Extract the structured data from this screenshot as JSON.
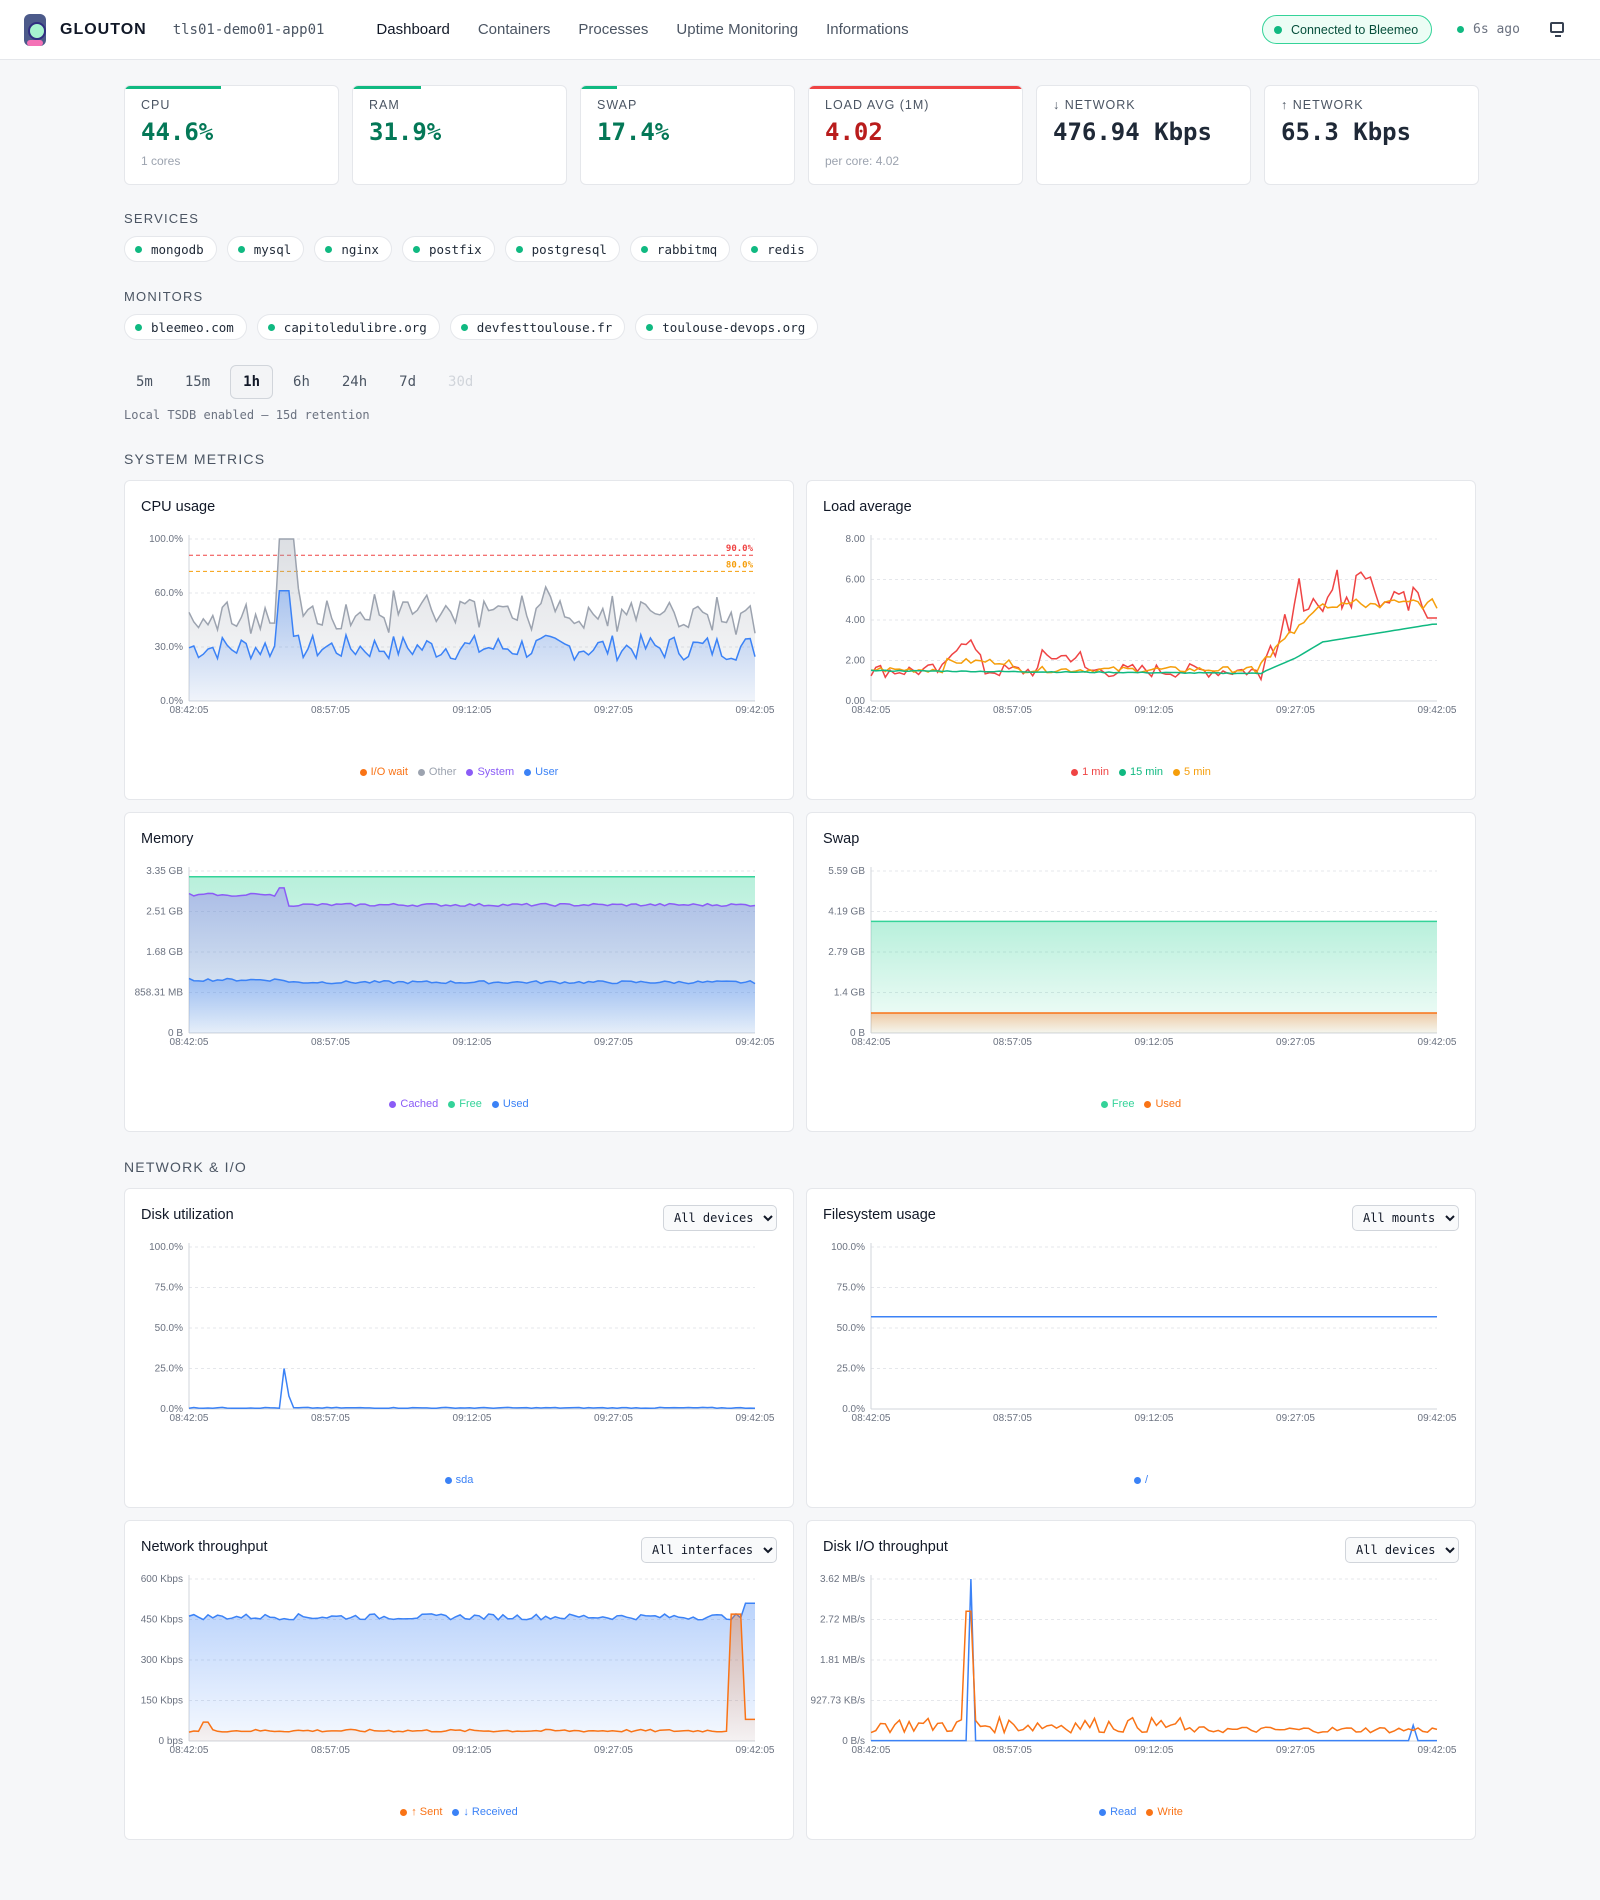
{
  "app": {
    "brand": "GLOUTON",
    "host": "tls01-demo01-app01"
  },
  "nav": {
    "items": [
      "Dashboard",
      "Containers",
      "Processes",
      "Uptime Monitoring",
      "Informations"
    ],
    "active": "Dashboard"
  },
  "status": {
    "connection": "Connected to Bleemeo",
    "last_update": "6s ago"
  },
  "cards": [
    {
      "label": "CPU",
      "value": "44.6%",
      "sub": "1 cores",
      "color": "#047857",
      "bar_color": "#10b981",
      "bar_fraction": 0.45
    },
    {
      "label": "RAM",
      "value": "31.9%",
      "sub": "",
      "color": "#047857",
      "bar_color": "#10b981",
      "bar_fraction": 0.32
    },
    {
      "label": "SWAP",
      "value": "17.4%",
      "sub": "",
      "color": "#047857",
      "bar_color": "#10b981",
      "bar_fraction": 0.17
    },
    {
      "label": "LOAD AVG (1M)",
      "value": "4.02",
      "sub": "per core: 4.02",
      "color": "#b91c1c",
      "bar_color": "#ef4444",
      "bar_fraction": 1.0
    },
    {
      "label": "↓ NETWORK",
      "value": "476.94 Kbps",
      "sub": "",
      "color": "#111827"
    },
    {
      "label": "↑ NETWORK",
      "value": "65.3 Kbps",
      "sub": "",
      "color": "#111827"
    }
  ],
  "services": {
    "label": "SERVICES",
    "items": [
      "mongodb",
      "mysql",
      "nginx",
      "postfix",
      "postgresql",
      "rabbitmq",
      "redis"
    ]
  },
  "monitors": {
    "label": "MONITORS",
    "items": [
      "bleemeo.com",
      "capitoledulibre.org",
      "devfesttoulouse.fr",
      "toulouse-devops.org"
    ]
  },
  "time_ranges": {
    "items": [
      "5m",
      "15m",
      "1h",
      "6h",
      "24h",
      "7d",
      "30d"
    ],
    "active": "1h",
    "disabled": [
      "30d"
    ]
  },
  "tsdb_note": "Local TSDB enabled — 15d retention",
  "sections": {
    "system": "SYSTEM METRICS",
    "network": "NETWORK & I/O"
  },
  "x_ticks": [
    "08:42:05",
    "08:57:05",
    "09:12:05",
    "09:27:05",
    "09:42:05"
  ],
  "chart_data": [
    {
      "id": "cpu",
      "type": "area",
      "title": "CPU usage",
      "ylabels": [
        "100.0%",
        "60.0%",
        "30.0%",
        "0.0%"
      ],
      "ylim": [
        0,
        100
      ],
      "thresholds": [
        {
          "label": "90.0%",
          "value": 90,
          "color": "#ef4444"
        },
        {
          "label": "80.0%",
          "value": 80,
          "color": "#f59e0b"
        }
      ],
      "series": [
        {
          "name": "I/O wait",
          "color": "#f97316"
        },
        {
          "name": "Other",
          "color": "#9ca3af",
          "approx": "~50% with spike to 100% near 08:49"
        },
        {
          "name": "System",
          "color": "#8b5cf6"
        },
        {
          "name": "User",
          "color": "#3b82f6",
          "approx": "~35% with spike to 68% near 08:49"
        }
      ]
    },
    {
      "id": "load",
      "type": "line",
      "title": "Load average",
      "ylabels": [
        "8.00",
        "6.00",
        "4.00",
        "2.00",
        "0.00"
      ],
      "ylim": [
        0,
        8
      ],
      "series": [
        {
          "name": "1 min",
          "color": "#ef4444"
        },
        {
          "name": "15 min",
          "color": "#10b981"
        },
        {
          "name": "5 min",
          "color": "#f59e0b"
        }
      ]
    },
    {
      "id": "memory",
      "type": "area",
      "title": "Memory",
      "ylabels": [
        "3.35 GB",
        "2.51 GB",
        "1.68 GB",
        "858.31 MB",
        "0 B"
      ],
      "ylim": [
        0,
        3.35
      ],
      "series": [
        {
          "name": "Cached",
          "color": "#8b5cf6"
        },
        {
          "name": "Free",
          "color": "#34d399"
        },
        {
          "name": "Used",
          "color": "#3b82f6"
        }
      ]
    },
    {
      "id": "swap",
      "type": "area",
      "title": "Swap",
      "ylabels": [
        "5.59 GB",
        "4.19 GB",
        "2.79 GB",
        "1.4 GB",
        "0 B"
      ],
      "ylim": [
        0,
        5.59
      ],
      "series": [
        {
          "name": "Free",
          "color": "#34d399",
          "approx": "3.85 GB"
        },
        {
          "name": "Used",
          "color": "#f97316",
          "approx": "0.69 GB"
        }
      ]
    },
    {
      "id": "disk",
      "type": "line",
      "title": "Disk utilization",
      "select": "All devices",
      "ylabels": [
        "100.0%",
        "75.0%",
        "50.0%",
        "25.0%",
        "0.0%"
      ],
      "ylim": [
        0,
        100
      ],
      "series": [
        {
          "name": "sda",
          "color": "#3b82f6"
        }
      ]
    },
    {
      "id": "fs",
      "type": "line",
      "title": "Filesystem usage",
      "select": "All mounts",
      "ylabels": [
        "100.0%",
        "75.0%",
        "50.0%",
        "25.0%",
        "0.0%"
      ],
      "ylim": [
        0,
        100
      ],
      "series": [
        {
          "name": "/",
          "color": "#3b82f6",
          "approx": "57%"
        }
      ]
    },
    {
      "id": "net",
      "type": "area",
      "title": "Network throughput",
      "select": "All interfaces",
      "ylabels": [
        "600 Kbps",
        "450 Kbps",
        "300 Kbps",
        "150 Kbps",
        "0 bps"
      ],
      "ylim": [
        0,
        600
      ],
      "series": [
        {
          "name": "↑ Sent",
          "color": "#f97316",
          "approx": "~40 Kbps, spike 470 at end"
        },
        {
          "name": "↓ Received",
          "color": "#3b82f6",
          "approx": "~470 Kbps"
        }
      ]
    },
    {
      "id": "dio",
      "type": "line",
      "title": "Disk I/O throughput",
      "select": "All devices",
      "ylabels": [
        "3.62 MB/s",
        "2.72 MB/s",
        "1.81 MB/s",
        "927.73 KB/s",
        "0 B/s"
      ],
      "ylim": [
        0,
        3.62
      ],
      "series": [
        {
          "name": "Read",
          "color": "#3b82f6"
        },
        {
          "name": "Write",
          "color": "#f97316"
        }
      ]
    }
  ]
}
